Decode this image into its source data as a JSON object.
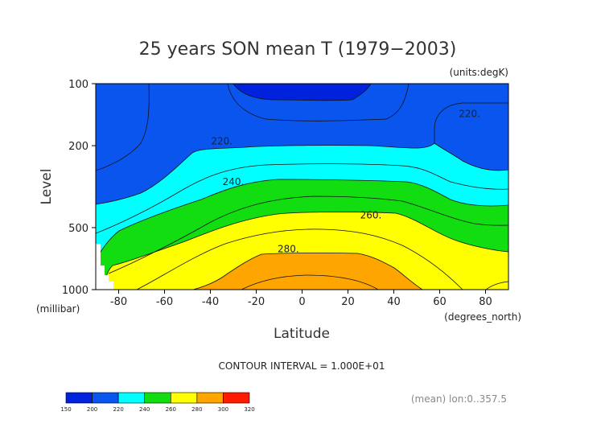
{
  "chart_data": {
    "type": "contour",
    "title": "25 years SON mean T (1979−2003)",
    "units_label": "(units:degK)",
    "xlabel": "Latitude",
    "ylabel": "Level",
    "x_units": "(degrees_north)",
    "y_units": "(millibar)",
    "xlim": [
      -90,
      90
    ],
    "x_ticks": [
      -80,
      -60,
      -40,
      -20,
      0,
      20,
      40,
      60,
      80
    ],
    "y_ticks": [
      {
        "label": "100",
        "pressure": 100
      },
      {
        "label": "200",
        "pressure": 200
      },
      {
        "label": "500",
        "pressure": 500
      },
      {
        "label": "1000",
        "pressure": 1000
      }
    ],
    "contour_interval_text": "CONTOUR INTERVAL = 1.000E+01",
    "footer_text": "(mean) lon:0..357.5",
    "contour_labels": [
      {
        "text": "220.",
        "lat": -35,
        "pressure": 190
      },
      {
        "text": "220.",
        "lat": 73,
        "pressure": 140
      },
      {
        "text": "240.",
        "lat": -30,
        "pressure": 300
      },
      {
        "text": "260.",
        "lat": 30,
        "pressure": 435
      },
      {
        "text": "280.",
        "lat": -6,
        "pressure": 635
      }
    ],
    "levels": [
      {
        "min": 150,
        "max": 200,
        "color": "#0022dd"
      },
      {
        "min": 200,
        "max": 220,
        "color": "#0a55ee"
      },
      {
        "min": 220,
        "max": 240,
        "color": "#00ffff"
      },
      {
        "min": 240,
        "max": 260,
        "color": "#11dd11"
      },
      {
        "min": 260,
        "max": 280,
        "color": "#ffff00"
      },
      {
        "min": 280,
        "max": 300,
        "color": "#ffa500"
      },
      {
        "min": 300,
        "max": 320,
        "color": "#ff1a00"
      }
    ],
    "colorbar_labels": [
      "150",
      "200",
      "220",
      "240",
      "260",
      "280",
      "300",
      "320"
    ]
  }
}
